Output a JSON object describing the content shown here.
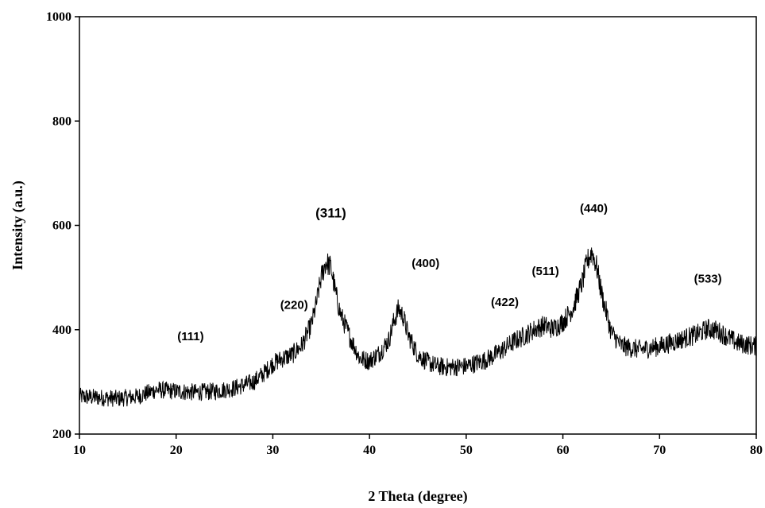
{
  "chart_data": {
    "type": "line",
    "title": "",
    "xlabel": "2 Theta (degree)",
    "ylabel": "Intensity (a.u.)",
    "xlim": [
      10,
      80
    ],
    "ylim": [
      200,
      1000
    ],
    "x_ticks": [
      10,
      20,
      30,
      40,
      50,
      60,
      70,
      80
    ],
    "y_ticks": [
      200,
      400,
      600,
      800,
      1000
    ],
    "grid": false,
    "legend": "none",
    "line_color": "#000000",
    "series": [
      {
        "x": [
          10,
          12,
          14,
          16,
          18,
          20,
          22,
          24,
          26,
          28,
          29,
          30,
          31,
          32,
          33,
          34,
          34.5,
          35,
          35.5,
          36,
          36.5,
          37,
          38,
          39,
          40,
          41,
          42,
          42.5,
          43,
          43.5,
          44,
          45,
          46,
          47,
          48,
          50,
          52,
          53,
          54,
          55,
          56,
          57,
          58,
          59,
          60,
          61,
          62,
          62.5,
          63,
          63.5,
          64,
          65,
          66,
          67,
          68,
          70,
          72,
          74,
          75,
          76,
          78,
          80
        ],
        "values": [
          272,
          270,
          268,
          272,
          285,
          282,
          280,
          282,
          288,
          300,
          315,
          335,
          345,
          352,
          370,
          410,
          450,
          500,
          530,
          520,
          470,
          430,
          385,
          345,
          340,
          355,
          380,
          415,
          440,
          425,
          390,
          352,
          338,
          330,
          328,
          330,
          342,
          352,
          365,
          378,
          388,
          400,
          408,
          402,
          415,
          440,
          490,
          530,
          550,
          520,
          470,
          395,
          370,
          365,
          362,
          368,
          380,
          392,
          402,
          398,
          375,
          368
        ]
      }
    ],
    "annotations": [
      {
        "label": "(111)",
        "x": 21.5,
        "y": 380
      },
      {
        "label": "(220)",
        "x": 32.2,
        "y": 440
      },
      {
        "label": "(311)",
        "x": 36,
        "y": 615,
        "emphasis": true
      },
      {
        "label": "(400)",
        "x": 45.8,
        "y": 520
      },
      {
        "label": "(422)",
        "x": 54,
        "y": 445
      },
      {
        "label": "(511)",
        "x": 58.2,
        "y": 505
      },
      {
        "label": "(440)",
        "x": 63.2,
        "y": 625
      },
      {
        "label": "(533)",
        "x": 75,
        "y": 490
      }
    ]
  }
}
